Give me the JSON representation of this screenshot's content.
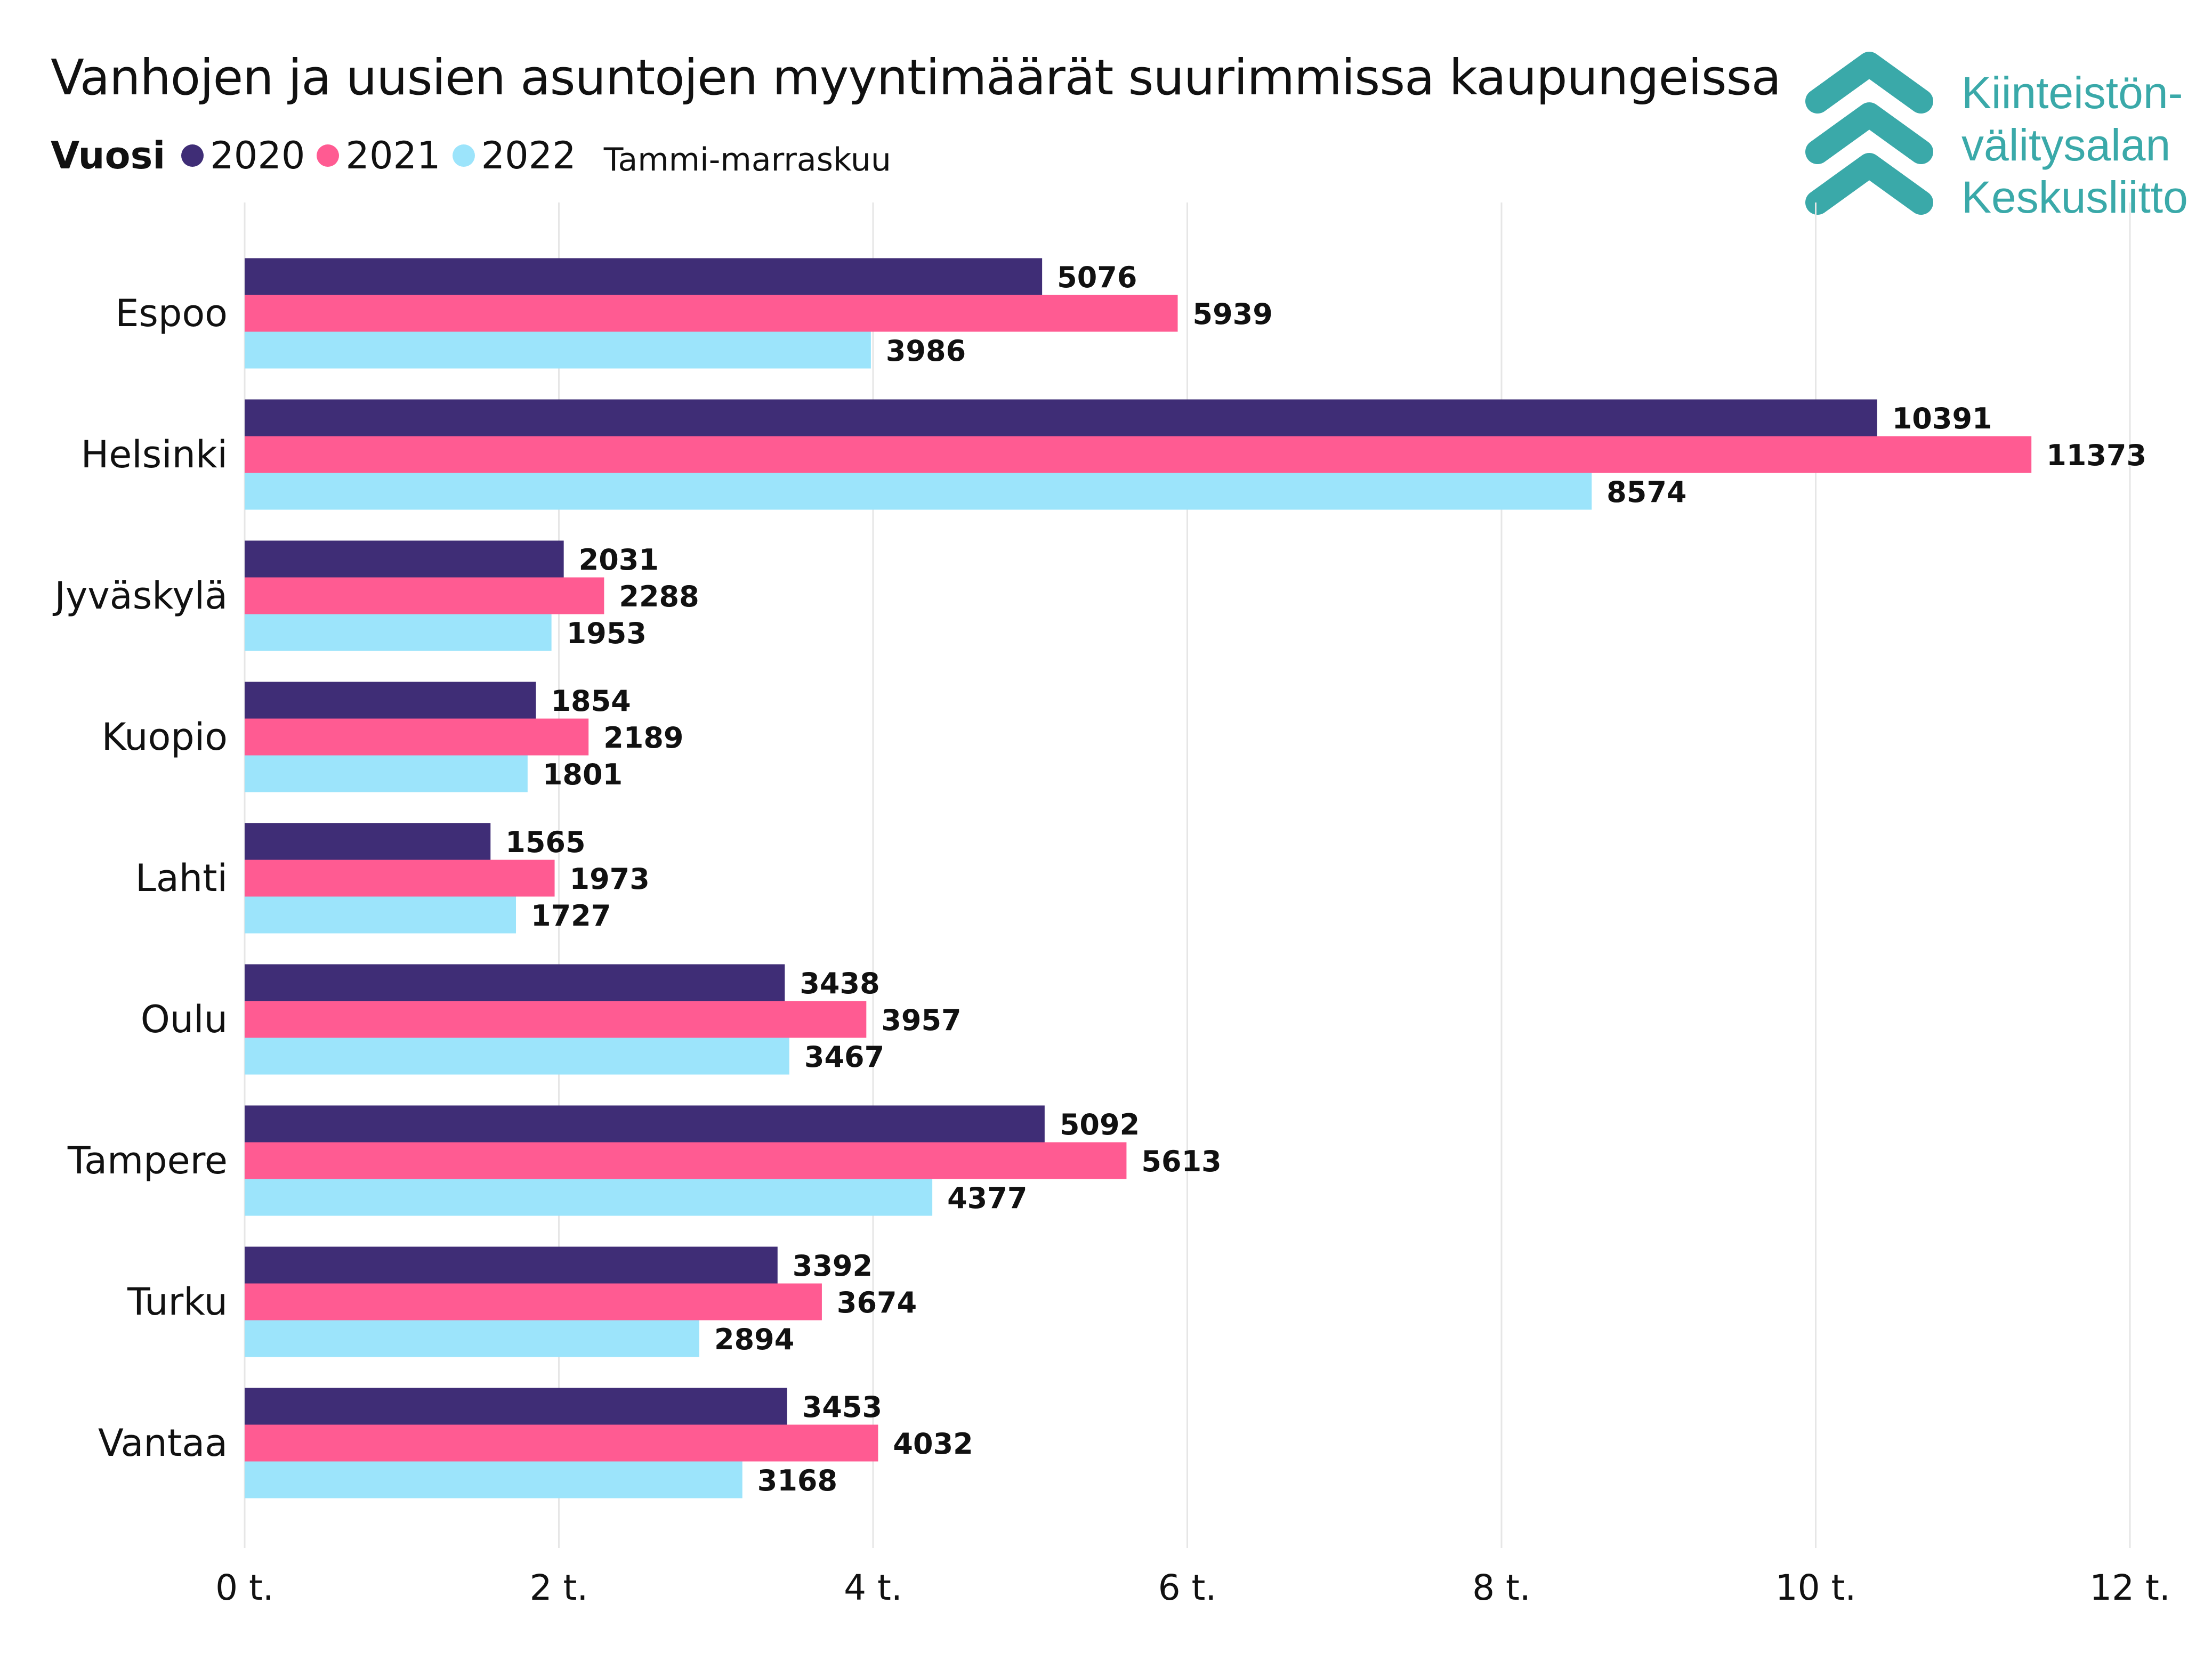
{
  "title": "Vanhojen ja uusien asuntojen myyntimäärät suurimmissa kaupungeissa",
  "legend": {
    "title": "Vuosi",
    "note": "Tammi-marraskuu"
  },
  "logo": {
    "line1": "Kiinteistön-",
    "line2": "välitysalan",
    "line3": "Keskusliitto",
    "color": "#3aa9a9"
  },
  "chart_data": {
    "type": "bar",
    "orientation": "horizontal",
    "categories": [
      "Espoo",
      "Helsinki",
      "Jyväskylä",
      "Kuopio",
      "Lahti",
      "Oulu",
      "Tampere",
      "Turku",
      "Vantaa"
    ],
    "series": [
      {
        "name": "2020",
        "color": "#3f2d76",
        "values": [
          5076,
          10391,
          2031,
          1854,
          1565,
          3438,
          5092,
          3392,
          3453
        ]
      },
      {
        "name": "2021",
        "color": "#ff5b92",
        "values": [
          5939,
          11373,
          2288,
          2189,
          1973,
          3957,
          5613,
          3674,
          4032
        ]
      },
      {
        "name": "2022",
        "color": "#9ce4fb",
        "values": [
          3986,
          8574,
          1953,
          1801,
          1727,
          3467,
          4377,
          2894,
          3168
        ]
      }
    ],
    "xlim": [
      0,
      12000
    ],
    "xticks": [
      0,
      2000,
      4000,
      6000,
      8000,
      10000,
      12000
    ],
    "xtick_labels": [
      "0 t.",
      "2 t.",
      "4 t.",
      "6 t.",
      "8 t.",
      "10 t.",
      "12 t."
    ],
    "grid": true,
    "legend_position": "top-left",
    "data_labels": true
  }
}
